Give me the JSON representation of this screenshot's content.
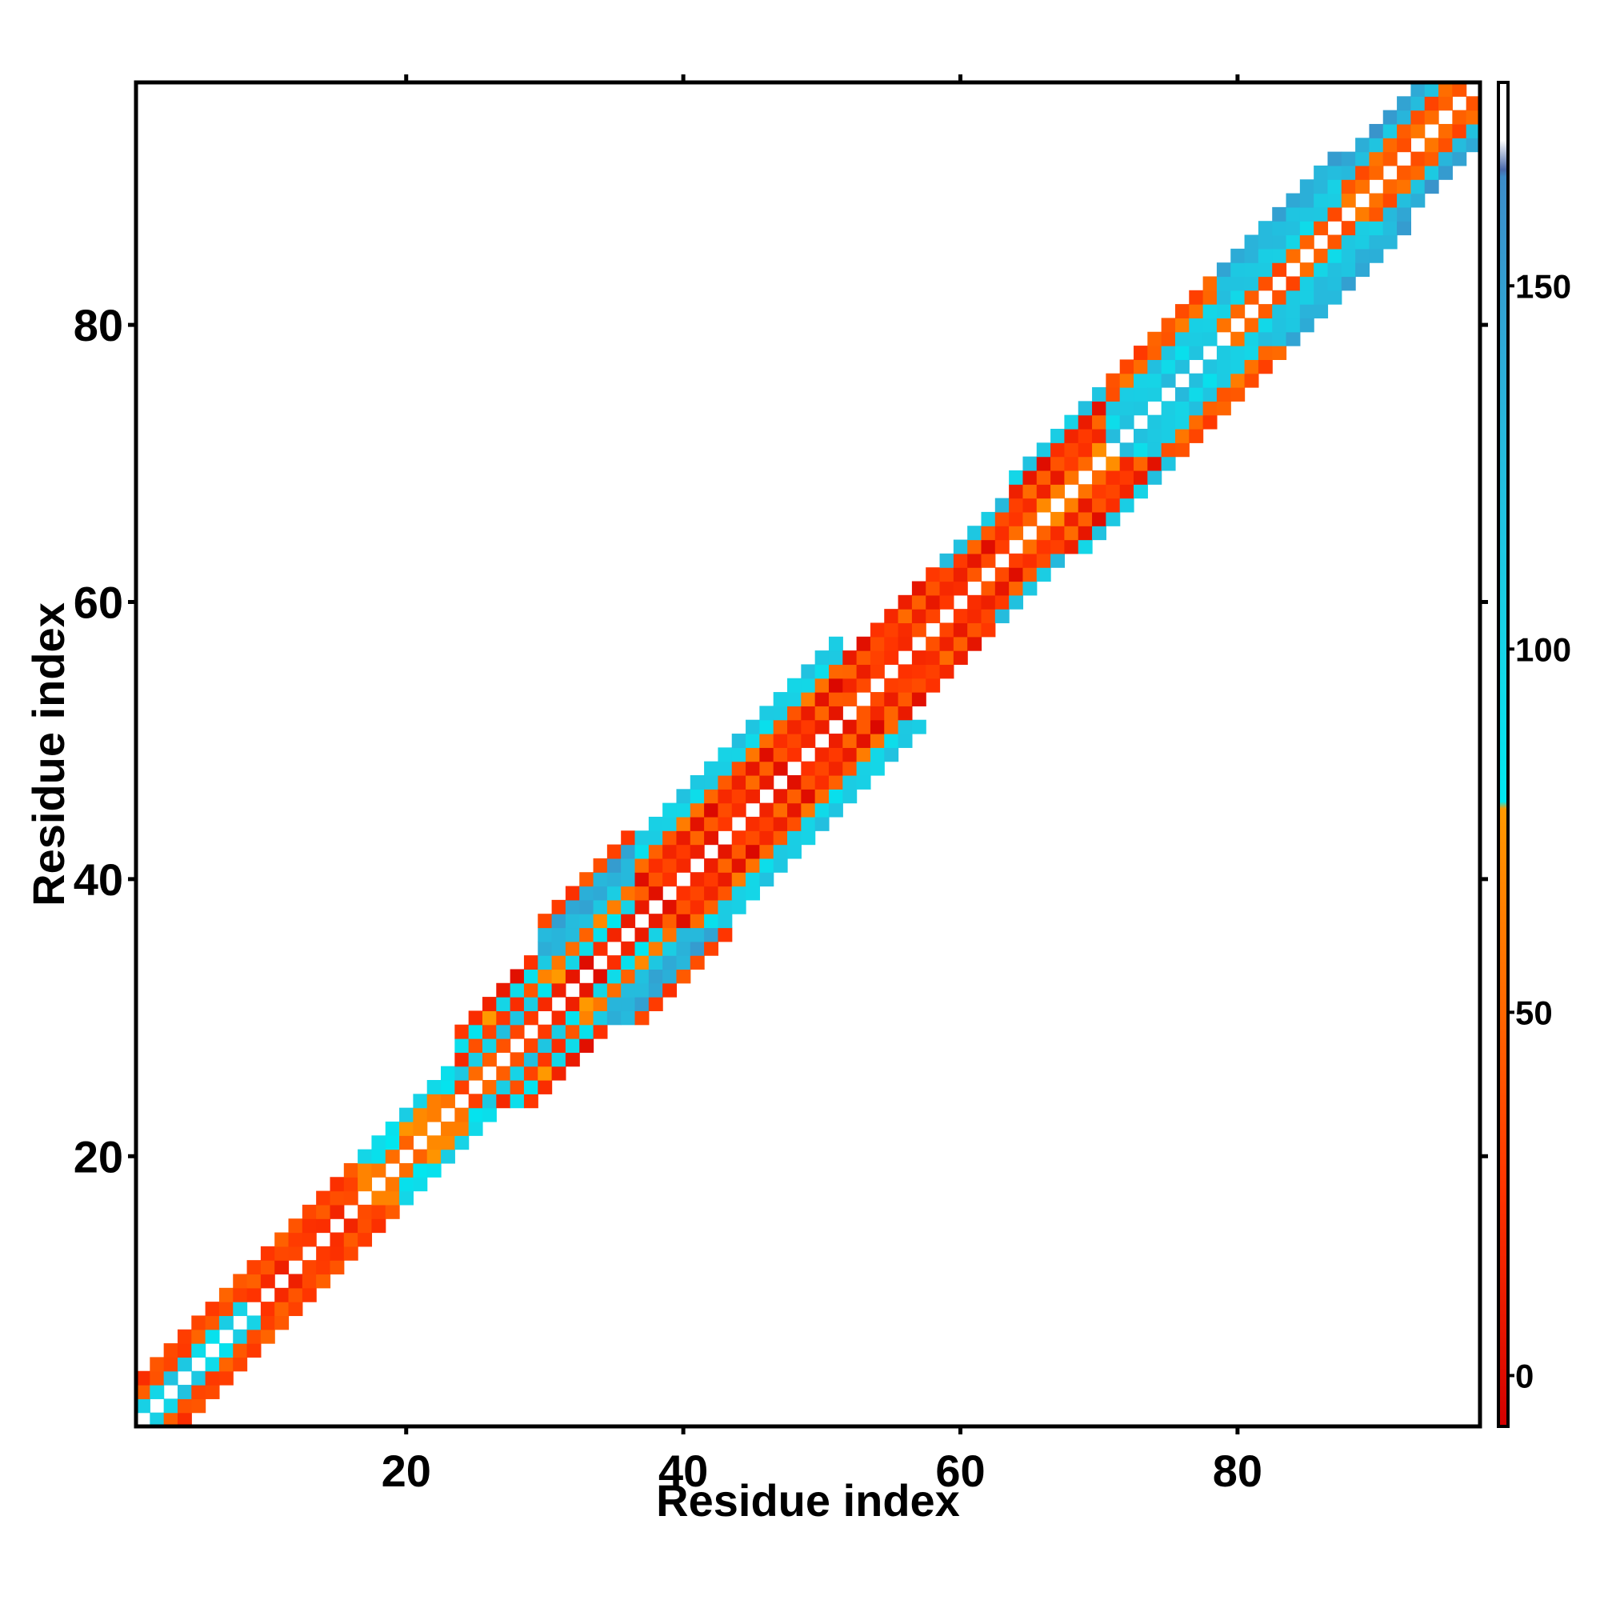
{
  "chart_data": {
    "type": "heatmap",
    "title": "",
    "xlabel": "Residue index",
    "ylabel": "Residue index",
    "xlim": [
      0.5,
      97.5
    ],
    "ylim": [
      0.5,
      97.5
    ],
    "x_ticks": [
      20,
      40,
      60,
      80
    ],
    "y_ticks": [
      20,
      40,
      60,
      80
    ],
    "diagonal_empty": true,
    "symmetric": true,
    "colorbar": {
      "range": [
        -7,
        178
      ],
      "ticks": [
        0,
        50,
        100,
        150
      ],
      "stops": [
        {
          "value": -7,
          "color": "#d40000"
        },
        {
          "value": 25,
          "color": "#ff3300"
        },
        {
          "value": 50,
          "color": "#ff6600"
        },
        {
          "value": 78,
          "color": "#ff9900"
        },
        {
          "value": 79,
          "color": "#00e8f0"
        },
        {
          "value": 100,
          "color": "#16d4e6"
        },
        {
          "value": 130,
          "color": "#27b8dc"
        },
        {
          "value": 165,
          "color": "#3d8cc8"
        },
        {
          "value": 166,
          "color": "#4a6aaa"
        },
        {
          "value": 170,
          "color": "#ffffff"
        },
        {
          "value": 178,
          "color": "#ffffff"
        }
      ]
    },
    "regions": [
      {
        "from": 1,
        "to": 5,
        "profile": [
          110,
          40,
          30
        ]
      },
      {
        "from": 5,
        "to": 9,
        "profile": [
          95,
          40,
          40
        ]
      },
      {
        "from": 9,
        "to": 17,
        "profile": [
          25,
          35,
          35
        ]
      },
      {
        "from": 17,
        "to": 24,
        "profile": [
          60,
          75,
          95
        ]
      },
      {
        "from": 24,
        "to": 30,
        "profile": [
          40,
          110,
          30,
          90,
          15
        ]
      },
      {
        "from": 30,
        "to": 37,
        "profile": [
          10,
          90,
          60,
          120,
          135,
          140,
          35
        ]
      },
      {
        "from": 37,
        "to": 52,
        "profile": [
          15,
          40,
          10,
          50,
          100,
          110
        ]
      },
      {
        "from": 52,
        "to": 59,
        "profile": [
          30,
          20,
          40,
          15
        ]
      },
      {
        "from": 59,
        "to": 64,
        "profile": [
          30,
          10,
          40,
          120
        ]
      },
      {
        "from": 64,
        "to": 71,
        "profile": [
          60,
          20,
          40,
          10,
          110
        ]
      },
      {
        "from": 71,
        "to": 79,
        "profile": [
          120,
          100,
          110,
          50,
          40
        ]
      },
      {
        "from": 79,
        "to": 88,
        "profile": [
          45,
          105,
          115,
          125,
          140
        ]
      },
      {
        "from": 88,
        "to": 98,
        "profile": [
          50,
          45,
          120,
          150
        ]
      }
    ]
  }
}
